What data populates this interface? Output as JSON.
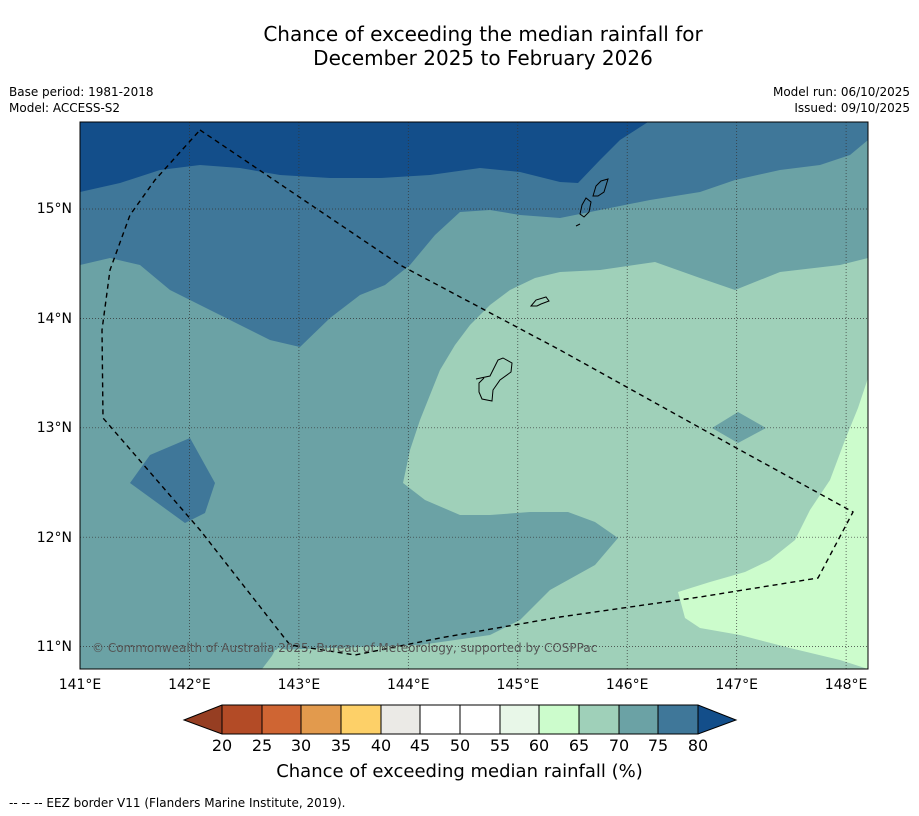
{
  "title": {
    "line1": "Chance of exceeding the median rainfall for",
    "line2": "December 2025 to February 2026"
  },
  "meta": {
    "base_period": "Base period: 1981-2018",
    "model": "Model: ACCESS-S2",
    "model_run": "Model run: 06/10/2025",
    "issued": "Issued: 09/10/2025"
  },
  "map": {
    "lon_range": [
      141,
      148.2
    ],
    "lat_range": [
      10.8,
      15.8
    ],
    "x_ticks": [
      {
        "value": 141,
        "label": "141°E"
      },
      {
        "value": 142,
        "label": "142°E"
      },
      {
        "value": 143,
        "label": "143°E"
      },
      {
        "value": 144,
        "label": "144°E"
      },
      {
        "value": 145,
        "label": "145°E"
      },
      {
        "value": 146,
        "label": "146°E"
      },
      {
        "value": 147,
        "label": "147°E"
      },
      {
        "value": 148,
        "label": "148°E"
      }
    ],
    "y_ticks": [
      {
        "value": 11,
        "label": "11°N"
      },
      {
        "value": 12,
        "label": "12°N"
      },
      {
        "value": 13,
        "label": "13°N"
      },
      {
        "value": 14,
        "label": "14°N"
      },
      {
        "value": 15,
        "label": "15°N"
      }
    ],
    "copyright": "© Commonwealth of Australia 2025, Bureau of Meteorology, supported by COSPPac"
  },
  "colors": {
    "c75_80": "#3f7799",
    "c70_75": "#6ba2a5",
    "c65_70": "#9fd0b9",
    "c60_65": "#ccfccc",
    "above80": "#134e8a",
    "scale": [
      "#b34b26",
      "#cf6533",
      "#e29a4d",
      "#fdd068",
      "#ebeae6",
      "#ffffff",
      "#ffffff",
      "#e8f7e8",
      "#ccfccc",
      "#9fd0b9",
      "#6ba2a5",
      "#3f7799"
    ],
    "left_extend": "#963e22",
    "right_extend": "#134e8a"
  },
  "colorbar": {
    "ticks": [
      "20",
      "25",
      "30",
      "35",
      "40",
      "45",
      "50",
      "55",
      "60",
      "65",
      "70",
      "75",
      "80"
    ],
    "label": "Chance of exceeding median rainfall (%)"
  },
  "footnote": "--  --  -- EEZ border V11 (Flanders Marine Institute, 2019)."
}
